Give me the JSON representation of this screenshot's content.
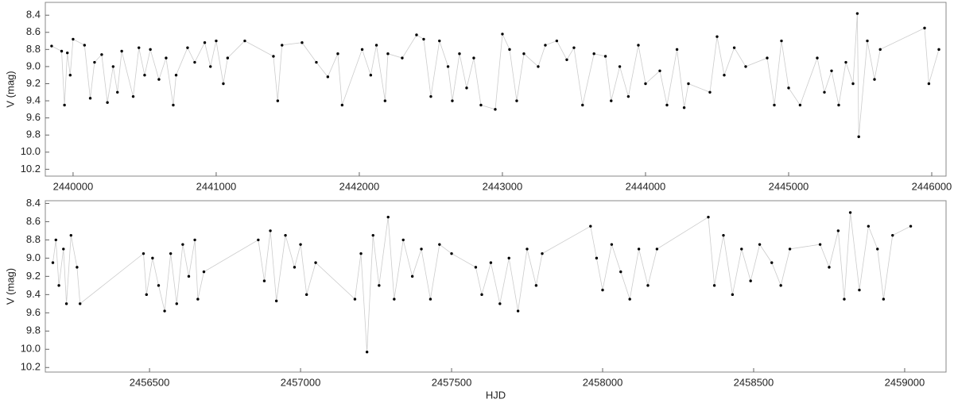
{
  "chart_data": [
    {
      "type": "scatter",
      "ylabel": "V (mag)",
      "x": [
        2439850,
        2439920,
        2439940,
        2439960,
        2439980,
        2440000,
        2440080,
        2440120,
        2440150,
        2440200,
        2440240,
        2440280,
        2440310,
        2440340,
        2440420,
        2440460,
        2440500,
        2440540,
        2440600,
        2440650,
        2440700,
        2440720,
        2440800,
        2440850,
        2440920,
        2440960,
        2441000,
        2441050,
        2441080,
        2441200,
        2441400,
        2441430,
        2441460,
        2441600,
        2441700,
        2441780,
        2441850,
        2441880,
        2442020,
        2442080,
        2442120,
        2442180,
        2442200,
        2442300,
        2442400,
        2442450,
        2442500,
        2442560,
        2442620,
        2442650,
        2442700,
        2442750,
        2442800,
        2442850,
        2442950,
        2443000,
        2443050,
        2443100,
        2443150,
        2443250,
        2443300,
        2443380,
        2443450,
        2443500,
        2443560,
        2443640,
        2443720,
        2443760,
        2443820,
        2443880,
        2443950,
        2444000,
        2444100,
        2444150,
        2444220,
        2444270,
        2444300,
        2444450,
        2444500,
        2444550,
        2444620,
        2444700,
        2444850,
        2444900,
        2444950,
        2445000,
        2445080,
        2445200,
        2445250,
        2445300,
        2445350,
        2445400,
        2445450,
        2445480,
        2445490,
        2445550,
        2445600,
        2445640,
        2445950,
        2445980,
        2446050
      ],
      "series": [
        {
          "color": "#000000",
          "values": [
            8.76,
            8.82,
            9.45,
            8.84,
            9.1,
            8.68,
            8.75,
            9.37,
            8.95,
            8.86,
            9.42,
            9.0,
            9.3,
            8.82,
            9.35,
            8.78,
            9.1,
            8.8,
            9.15,
            8.9,
            9.45,
            9.1,
            8.78,
            8.95,
            8.72,
            9.0,
            8.7,
            9.2,
            8.9,
            8.7,
            8.88,
            9.4,
            8.75,
            8.72,
            8.95,
            9.12,
            8.85,
            9.45,
            8.8,
            9.1,
            8.75,
            9.4,
            8.85,
            8.9,
            8.63,
            8.68,
            9.35,
            8.7,
            9.0,
            9.4,
            8.85,
            9.25,
            8.9,
            9.45,
            9.5,
            8.62,
            8.8,
            9.4,
            8.85,
            9.0,
            8.75,
            8.7,
            8.92,
            8.78,
            9.45,
            8.85,
            8.88,
            9.4,
            9.0,
            9.35,
            8.75,
            9.2,
            9.05,
            9.45,
            8.8,
            9.48,
            9.2,
            9.3,
            8.65,
            9.1,
            8.78,
            9.0,
            8.9,
            9.45,
            8.7,
            9.25,
            9.45,
            8.9,
            9.3,
            9.05,
            9.45,
            8.95,
            9.2,
            8.38,
            9.82,
            8.7,
            9.15,
            8.8,
            8.55,
            9.2,
            8.8
          ]
        }
      ],
      "line_color": "#cccccc",
      "xlim": [
        2439806,
        2446100
      ],
      "xticks": [
        2440000,
        2441000,
        2442000,
        2443000,
        2444000,
        2445000,
        2446000
      ],
      "ylim": [
        10.28,
        8.25
      ],
      "yticks": [
        8.4,
        8.6,
        8.8,
        {
          "value": 9.0,
          "label": "9.0"
        },
        9.2,
        9.4,
        9.6,
        9.8,
        {
          "value": 10.0,
          "label": "10.0"
        },
        10.2
      ]
    },
    {
      "type": "scatter",
      "ylabel": "V (mag)",
      "xlabel": "HJD",
      "x": [
        2456180,
        2456190,
        2456200,
        2456215,
        2456225,
        2456240,
        2456260,
        2456270,
        2456480,
        2456490,
        2456510,
        2456530,
        2456550,
        2456570,
        2456590,
        2456610,
        2456630,
        2456650,
        2456660,
        2456680,
        2456860,
        2456880,
        2456900,
        2456920,
        2456950,
        2456980,
        2457000,
        2457020,
        2457050,
        2457180,
        2457200,
        2457220,
        2457240,
        2457260,
        2457290,
        2457310,
        2457340,
        2457370,
        2457400,
        2457430,
        2457460,
        2457500,
        2457580,
        2457600,
        2457630,
        2457660,
        2457690,
        2457720,
        2457750,
        2457780,
        2457800,
        2457960,
        2457980,
        2458000,
        2458030,
        2458060,
        2458090,
        2458120,
        2458150,
        2458180,
        2458350,
        2458370,
        2458400,
        2458430,
        2458460,
        2458490,
        2458520,
        2458560,
        2458590,
        2458620,
        2458720,
        2458750,
        2458780,
        2458800,
        2458820,
        2458850,
        2458880,
        2458910,
        2458930,
        2458960,
        2459020
      ],
      "series": [
        {
          "color": "#000000",
          "values": [
            9.05,
            8.8,
            9.3,
            8.9,
            9.5,
            8.75,
            9.1,
            9.5,
            8.95,
            9.4,
            9.0,
            9.3,
            9.58,
            8.95,
            9.5,
            8.85,
            9.2,
            8.8,
            9.45,
            9.15,
            8.8,
            9.25,
            8.7,
            9.47,
            8.75,
            9.1,
            8.85,
            9.4,
            9.05,
            9.45,
            8.95,
            10.03,
            8.75,
            9.3,
            8.55,
            9.45,
            8.8,
            9.2,
            8.9,
            9.45,
            8.85,
            8.95,
            9.1,
            9.4,
            9.05,
            9.5,
            9.0,
            9.58,
            8.9,
            9.3,
            8.95,
            8.65,
            9.0,
            9.35,
            8.85,
            9.15,
            9.45,
            8.9,
            9.3,
            8.9,
            8.55,
            9.3,
            8.75,
            9.4,
            8.9,
            9.25,
            8.85,
            9.05,
            9.3,
            8.9,
            8.85,
            9.1,
            8.7,
            9.45,
            8.5,
            9.35,
            8.65,
            8.9,
            9.45,
            8.75,
            8.65
          ]
        }
      ],
      "line_color": "#cccccc",
      "xlim": [
        2456155,
        2459137
      ],
      "xticks": [
        2456500,
        2457000,
        2457500,
        2458000,
        2458500,
        2459000
      ],
      "ylim": [
        10.25,
        8.37
      ],
      "yticks": [
        8.4,
        8.6,
        8.8,
        {
          "value": 9.0,
          "label": "9.0"
        },
        9.2,
        9.4,
        9.6,
        9.8,
        {
          "value": 10.0,
          "label": "10.0"
        },
        10.2
      ]
    }
  ]
}
